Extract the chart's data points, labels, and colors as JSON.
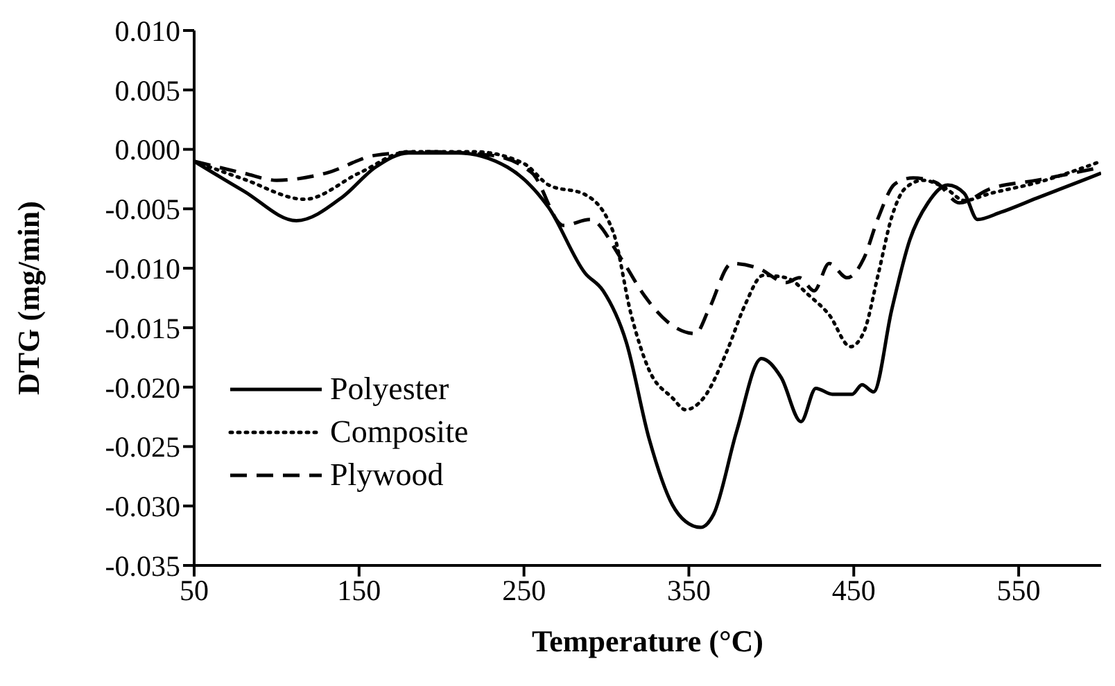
{
  "chart_data": {
    "type": "line",
    "xlabel": "Temperature (°C)",
    "ylabel": "DTG (mg/min)",
    "xlim": [
      50,
      600
    ],
    "xticks": [
      50,
      150,
      250,
      350,
      450,
      550
    ],
    "ylim": [
      -0.035,
      0.01
    ],
    "yticks": [
      {
        "value": 0.01,
        "label": "0.010"
      },
      {
        "value": 0.005,
        "label": "0.005"
      },
      {
        "value": 0,
        "label": "0.000"
      },
      {
        "value": -0.005,
        "label": "-0.005"
      },
      {
        "value": -0.01,
        "label": "-0.010"
      },
      {
        "value": -0.015,
        "label": "-0.015"
      },
      {
        "value": -0.02,
        "label": "-0.020"
      },
      {
        "value": -0.025,
        "label": "-0.025"
      },
      {
        "value": -0.03,
        "label": "-0.030"
      },
      {
        "value": -0.035,
        "label": "-0.035"
      }
    ],
    "grid": false,
    "legend": "bottom left",
    "marker": "none",
    "series": [
      {
        "name": "Polyester",
        "color": "#000000",
        "line_style": "solid",
        "x": [
          50,
          80,
          112,
          140,
          160,
          180,
          210,
          240,
          265,
          287,
          298,
          312,
          326,
          340,
          348,
          357,
          365,
          379,
          394,
          406,
          418,
          427,
          437,
          449,
          455,
          462,
          473,
          484,
          495,
          507,
          517,
          525,
          539,
          561,
          589,
          600
        ],
        "values": [
          -0.001,
          -0.0035,
          -0.006,
          -0.004,
          -0.0015,
          -0.0003,
          -0.0003,
          -0.0015,
          -0.0049,
          -0.0104,
          -0.0119,
          -0.0162,
          -0.0244,
          -0.0299,
          -0.0313,
          -0.0318,
          -0.0307,
          -0.0237,
          -0.0176,
          -0.0192,
          -0.0229,
          -0.0201,
          -0.0206,
          -0.0206,
          -0.0198,
          -0.0204,
          -0.0135,
          -0.0076,
          -0.0045,
          -0.003,
          -0.0037,
          -0.0059,
          -0.0053,
          -0.0041,
          -0.0026,
          -0.002
        ]
      },
      {
        "name": "Composite",
        "color": "#000000",
        "line_style": "dotted",
        "x": [
          50,
          80,
          117,
          150,
          180,
          220,
          250,
          265,
          287,
          304,
          315,
          326,
          340,
          348,
          359,
          373,
          384,
          395,
          409,
          423,
          435,
          448,
          456,
          465,
          473,
          481,
          492,
          506,
          517,
          533,
          561,
          600
        ],
        "values": [
          -0.001,
          -0.0025,
          -0.0042,
          -0.002,
          -0.0002,
          -0.0002,
          -0.0012,
          -0.003,
          -0.0038,
          -0.0069,
          -0.0139,
          -0.0186,
          -0.0209,
          -0.0219,
          -0.0209,
          -0.017,
          -0.0131,
          -0.0106,
          -0.0108,
          -0.0123,
          -0.0139,
          -0.0166,
          -0.0154,
          -0.0104,
          -0.0057,
          -0.0033,
          -0.0026,
          -0.0033,
          -0.0043,
          -0.0037,
          -0.0028,
          -0.001
        ]
      },
      {
        "name": "Plywood",
        "color": "#000000",
        "line_style": "dashed",
        "x": [
          50,
          80,
          100,
          130,
          160,
          190,
          230,
          255,
          274,
          290,
          309,
          323,
          337,
          354,
          362,
          376,
          392,
          409,
          417,
          426,
          435,
          446,
          456,
          465,
          475,
          486,
          500,
          514,
          533,
          561,
          600
        ],
        "values": [
          -0.001,
          -0.002,
          -0.0026,
          -0.002,
          -0.0005,
          -0.0002,
          -0.0005,
          -0.002,
          -0.0064,
          -0.0059,
          -0.0092,
          -0.0123,
          -0.0145,
          -0.0155,
          -0.0135,
          -0.0096,
          -0.01,
          -0.0112,
          -0.0108,
          -0.0119,
          -0.0096,
          -0.0108,
          -0.0092,
          -0.0057,
          -0.0029,
          -0.0024,
          -0.0028,
          -0.0045,
          -0.0033,
          -0.0026,
          -0.0015
        ]
      }
    ]
  }
}
